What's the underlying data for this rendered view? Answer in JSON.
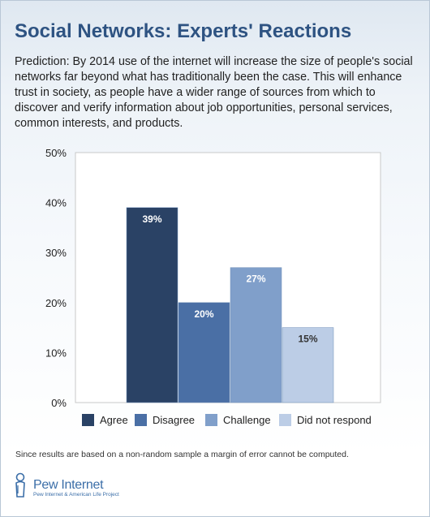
{
  "title": "Social Networks: Experts' Reactions",
  "description": "Prediction: By 2014 use of the internet will increase the size of people's social networks far beyond what has traditionally been the case. This will enhance trust in society, as people have a wider range of sources from which to discover and verify information about job opportunities, personal services, common interests, and products.",
  "footnote": "Since results are based on a non-random sample a margin of error cannot be computed.",
  "logo": {
    "name": "Pew Internet",
    "subtitle": "Pew Internet & American Life Project",
    "icon": "pew-person-icon"
  },
  "colors": [
    "#2a4265",
    "#4a6fa5",
    "#809fca",
    "#bccde6"
  ],
  "chart_data": {
    "type": "bar",
    "categories": [
      "Agree",
      "Disagree",
      "Challenge",
      "Did not respond"
    ],
    "values": [
      39,
      20,
      27,
      15
    ],
    "labels": [
      "39%",
      "20%",
      "27%",
      "15%"
    ],
    "ylim": [
      0,
      50
    ],
    "yticks": [
      "0%",
      "10%",
      "20%",
      "30%",
      "40%",
      "50%"
    ],
    "grid": false,
    "legend": "bottom"
  }
}
